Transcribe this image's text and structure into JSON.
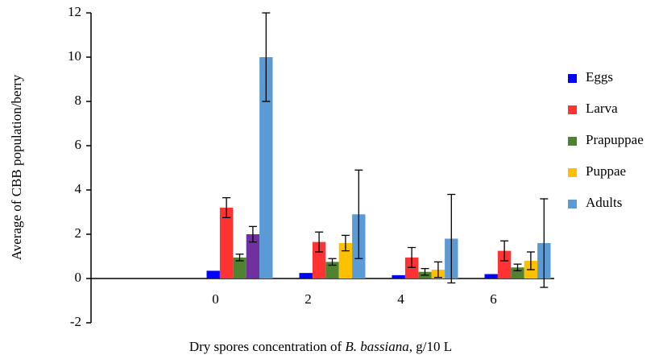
{
  "chart_data": {
    "type": "bar",
    "y_label": "Average of CBB population/berry",
    "x_label": [
      "Dry spores concentration of ",
      "B. bassiana",
      ", g/10 L"
    ],
    "categories": [
      null,
      "0",
      "2",
      "4",
      "6"
    ],
    "ylim": [
      -2,
      12
    ],
    "yticks": [
      -2,
      0,
      2,
      4,
      6,
      8,
      10,
      12
    ],
    "legend": "right",
    "series": [
      {
        "name": "Eggs",
        "color": "#0000ff",
        "values": [
          null,
          0.35,
          0.25,
          0.15,
          0.2
        ]
      },
      {
        "name": "Larva",
        "color": "#ff3333",
        "values": [
          null,
          3.2,
          1.65,
          0.95,
          1.25
        ],
        "errors": [
          null,
          0.45,
          0.45,
          0.45,
          0.45
        ]
      },
      {
        "name": "Prapuppae",
        "color": "#4f8231",
        "values": [
          null,
          0.95,
          0.75,
          0.3,
          0.5
        ],
        "errors": [
          null,
          0.15,
          0.15,
          0.15,
          0.15
        ]
      },
      {
        "name": "Puppae",
        "color": "#ffc000",
        "colors": [
          null,
          "#7030a0",
          "#ffc000",
          "#ffc000",
          "#ffc000"
        ],
        "values": [
          null,
          2.0,
          1.6,
          0.4,
          0.8
        ],
        "errors": [
          null,
          0.35,
          0.35,
          0.35,
          0.4
        ]
      },
      {
        "name": "Adults",
        "color": "#5b9bd5",
        "values": [
          null,
          10.0,
          2.9,
          1.8,
          1.6
        ],
        "errors": [
          null,
          2.0,
          2.0,
          2.0,
          2.0
        ]
      }
    ]
  }
}
